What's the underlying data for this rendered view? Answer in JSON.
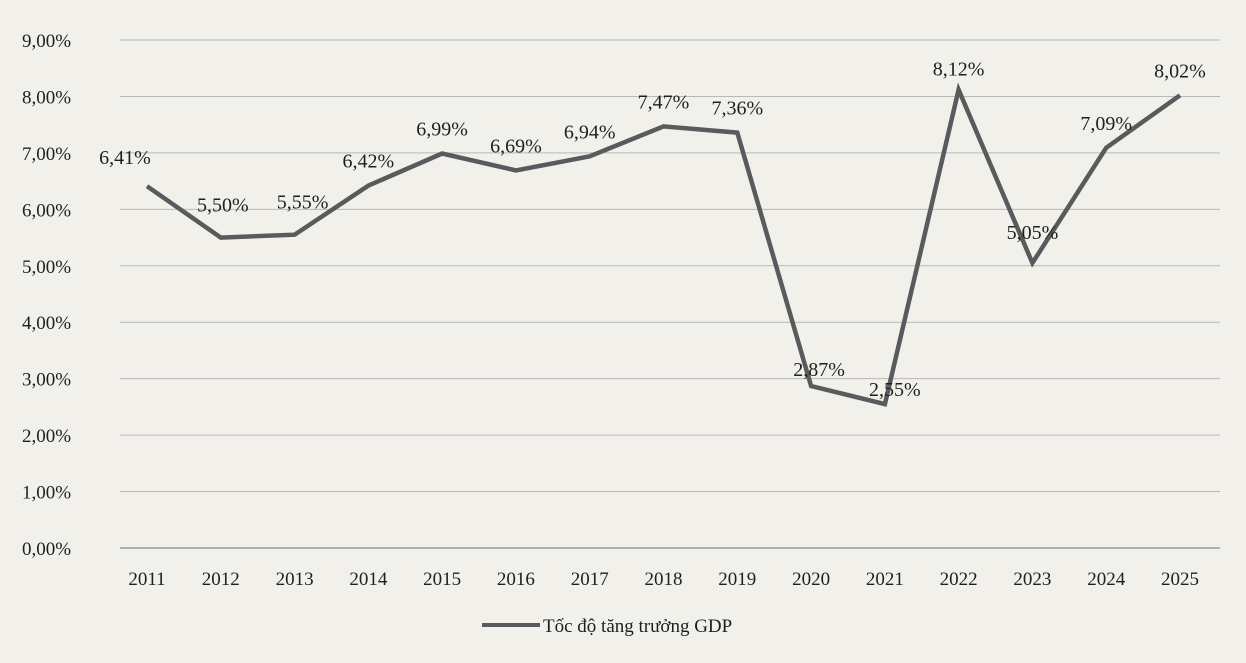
{
  "colors": {
    "line": "#5a5a5e",
    "grid": "#b8b8b8",
    "axis": "#9a9a9a",
    "background": "#f1f0ea"
  },
  "chart_data": {
    "type": "line",
    "title": "",
    "xlabel": "",
    "ylabel": "",
    "categories": [
      "2011",
      "2012",
      "2013",
      "2014",
      "2015",
      "2016",
      "2017",
      "2018",
      "2019",
      "2020",
      "2021",
      "2022",
      "2023",
      "2024",
      "2025"
    ],
    "series": [
      {
        "name": "Tốc độ tăng trưởng GDP",
        "values": [
          6.41,
          5.5,
          5.55,
          6.42,
          6.99,
          6.69,
          6.94,
          7.47,
          7.36,
          2.87,
          2.55,
          8.12,
          5.05,
          7.09,
          8.02
        ],
        "labels": [
          "6,41%",
          "5,50%",
          "5,55%",
          "6,42%",
          "6,99%",
          "6,69%",
          "6,94%",
          "7,47%",
          "7,36%",
          "2,87%",
          "2,55%",
          "8,12%",
          "5,05%",
          "7,09%",
          "8,02%"
        ]
      }
    ],
    "ylim": [
      0,
      9
    ],
    "yticks": [
      0,
      1,
      2,
      3,
      4,
      5,
      6,
      7,
      8,
      9
    ],
    "ytick_labels": [
      "0,00%",
      "1,00%",
      "2,00%",
      "3,00%",
      "4,00%",
      "5,00%",
      "6,00%",
      "7,00%",
      "8,00%",
      "9,00%"
    ],
    "grid": true,
    "legend_position": "bottom-center"
  }
}
